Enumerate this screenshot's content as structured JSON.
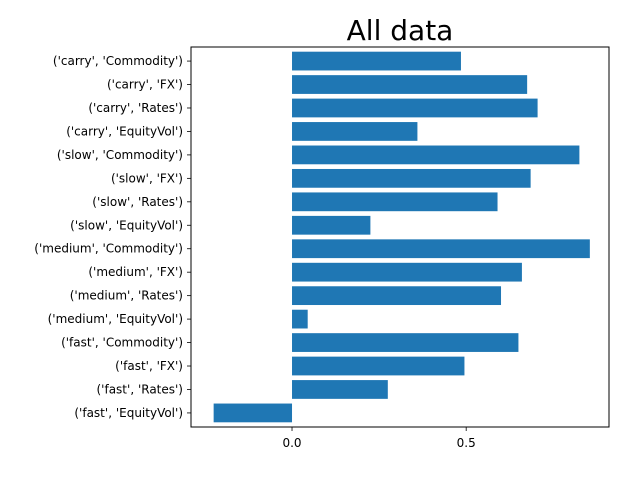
{
  "chart_data": {
    "type": "bar",
    "orientation": "horizontal",
    "title": "All data",
    "xlabel": "",
    "ylabel": "",
    "xlim": [
      -0.29,
      0.91
    ],
    "xticks": [
      0.0,
      0.5
    ],
    "xtick_labels": [
      "0.0",
      "0.5"
    ],
    "grid": false,
    "bar_color": "#1f77b4",
    "categories": [
      "('fast', 'EquityVol')",
      "('fast', 'Rates')",
      "('fast', 'FX')",
      "('fast', 'Commodity')",
      "('medium', 'EquityVol')",
      "('medium', 'Rates')",
      "('medium', 'FX')",
      "('medium', 'Commodity')",
      "('slow', 'EquityVol')",
      "('slow', 'Rates')",
      "('slow', 'FX')",
      "('slow', 'Commodity')",
      "('carry', 'EquityVol')",
      "('carry', 'Rates')",
      "('carry', 'FX')",
      "('carry', 'Commodity')"
    ],
    "values": [
      -0.225,
      0.275,
      0.495,
      0.65,
      0.045,
      0.6,
      0.66,
      0.855,
      0.225,
      0.59,
      0.685,
      0.825,
      0.36,
      0.705,
      0.675,
      0.485
    ]
  }
}
